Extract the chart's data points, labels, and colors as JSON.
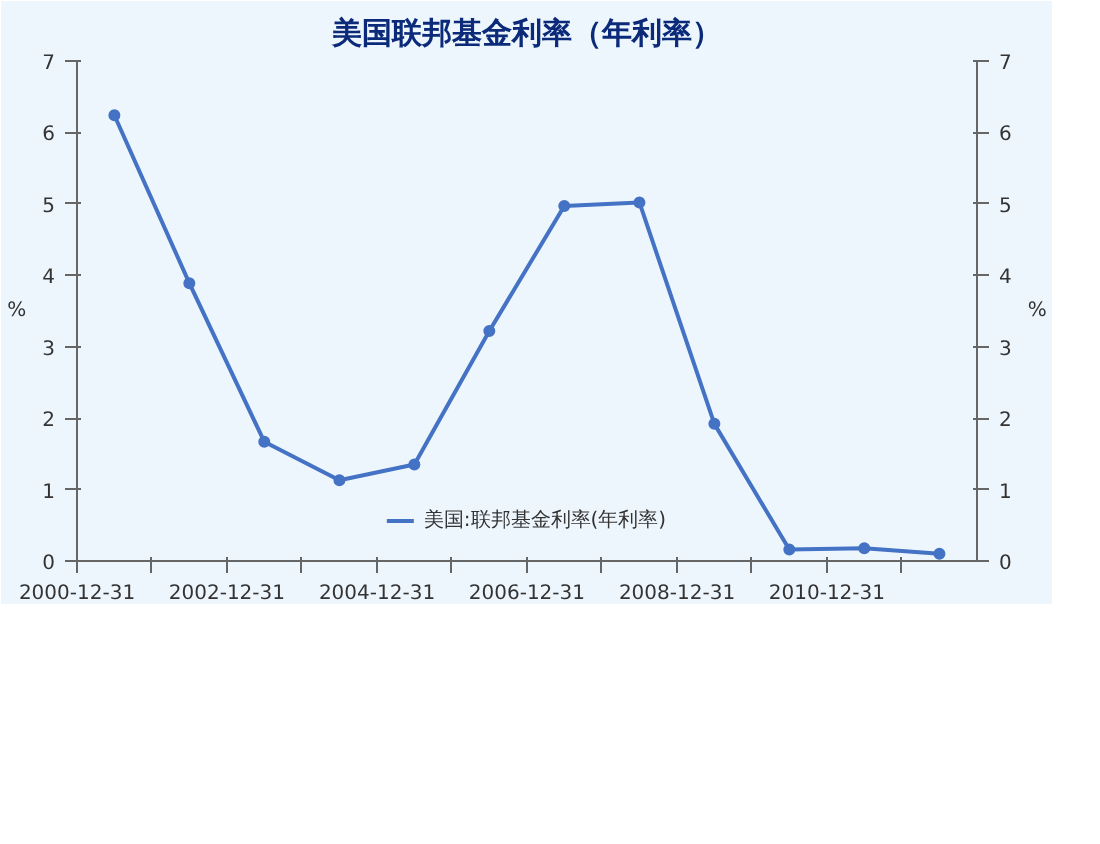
{
  "chart_data": {
    "type": "line",
    "title": "美国联邦基金利率（年利率）",
    "ylabel": "%",
    "y2label": "%",
    "x": [
      "2001-07-01",
      "2002-07-01",
      "2003-07-01",
      "2004-07-01",
      "2005-07-01",
      "2006-07-01",
      "2007-07-01",
      "2008-07-01",
      "2009-07-01",
      "2010-07-01",
      "2011-07-01",
      "2012-07-01"
    ],
    "series": [
      {
        "name": "美国:联邦基金利率(年利率)",
        "color": "#4472c4",
        "values": [
          6.24,
          3.89,
          1.67,
          1.13,
          1.35,
          3.22,
          4.97,
          5.02,
          1.92,
          0.16,
          0.18,
          0.1
        ]
      }
    ],
    "xlim": [
      "2000-12-31",
      "2012-12-31"
    ],
    "xticks": [
      {
        "value": "2000-12-31",
        "label": "2000-12-31"
      },
      {
        "value": "2001-12-31",
        "label": null
      },
      {
        "value": "2002-12-31",
        "label": "2002-12-31"
      },
      {
        "value": "2003-12-31",
        "label": null
      },
      {
        "value": "2004-12-31",
        "label": "2004-12-31"
      },
      {
        "value": "2005-12-31",
        "label": null
      },
      {
        "value": "2006-12-31",
        "label": "2006-12-31"
      },
      {
        "value": "2007-12-31",
        "label": null
      },
      {
        "value": "2008-12-31",
        "label": "2008-12-31"
      },
      {
        "value": "2009-12-31",
        "label": null
      },
      {
        "value": "2010-12-31",
        "label": "2010-12-31"
      },
      {
        "value": "2011-12-31",
        "label": null
      }
    ],
    "ylim": [
      0,
      7
    ],
    "yticks": [
      0,
      1,
      2,
      3,
      4,
      5,
      6,
      7
    ],
    "y2lim": [
      0,
      7
    ],
    "y2ticks": [
      0,
      1,
      2,
      3,
      4,
      5,
      6,
      7
    ],
    "legend": "bottom",
    "marker": "circle",
    "line_style": "solid"
  }
}
